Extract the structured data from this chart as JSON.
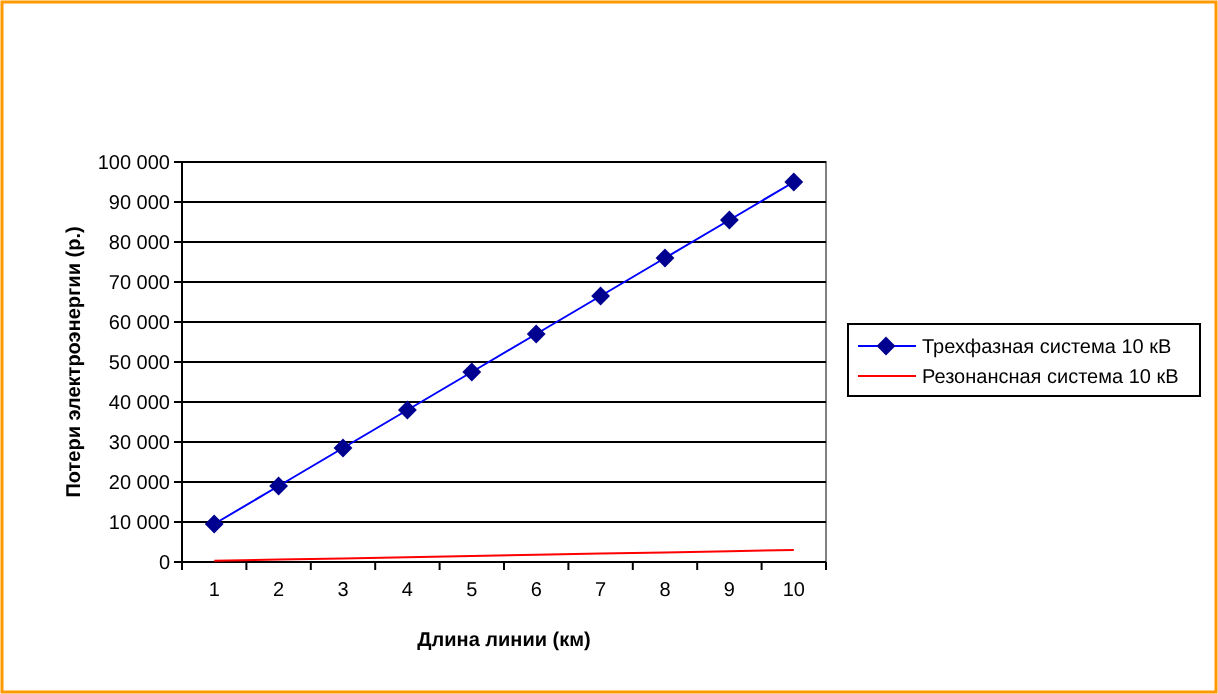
{
  "chart_data": {
    "type": "line",
    "xlabel": "Длина линии (км)",
    "ylabel": "Потери электроэнергии (р.)",
    "categories": [
      "1",
      "2",
      "3",
      "4",
      "5",
      "6",
      "7",
      "8",
      "9",
      "10"
    ],
    "series": [
      {
        "name": "Трехфазная система 10 кВ",
        "color": "#0000ff",
        "marker": "diamond",
        "values": [
          9500,
          19000,
          28500,
          38000,
          47500,
          57000,
          66500,
          76000,
          85500,
          95000
        ]
      },
      {
        "name": "Резонансная система 10 кВ",
        "color": "#ff0000",
        "marker": "none",
        "values": [
          300,
          600,
          900,
          1200,
          1500,
          1800,
          2100,
          2400,
          2700,
          3000
        ]
      }
    ],
    "ylim": [
      0,
      100000
    ],
    "yticks": [
      {
        "value": 0,
        "label": "0"
      },
      {
        "value": 10000,
        "label": "10 000"
      },
      {
        "value": 20000,
        "label": "20 000"
      },
      {
        "value": 30000,
        "label": "30 000"
      },
      {
        "value": 40000,
        "label": "40 000"
      },
      {
        "value": 50000,
        "label": "50 000"
      },
      {
        "value": 60000,
        "label": "60 000"
      },
      {
        "value": 70000,
        "label": "70 000"
      },
      {
        "value": 80000,
        "label": "80 000"
      },
      {
        "value": 90000,
        "label": "90 000"
      },
      {
        "value": 100000,
        "label": "100 000"
      }
    ],
    "grid": "y",
    "legend": "right"
  }
}
